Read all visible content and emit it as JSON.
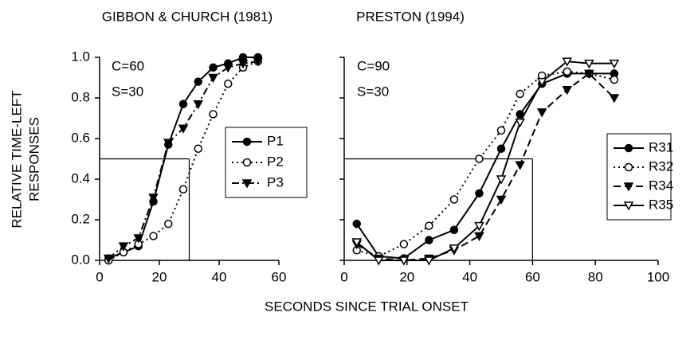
{
  "ylabel": [
    "RELATIVE TIME-LEFT",
    "RESPONSES"
  ],
  "xlabel": "SECONDS SINCE TRIAL ONSET",
  "chart_data": [
    {
      "type": "line",
      "title": "GIBBON & CHURCH (1981)",
      "annotations": [
        "C=60",
        "S=30"
      ],
      "xlim": [
        0,
        60
      ],
      "xticks": [
        0,
        20,
        40,
        60
      ],
      "ylim": [
        0,
        1
      ],
      "yticks": [
        {
          "value": 0,
          "label": "0.0"
        },
        {
          "value": 0.2,
          "label": "0.2"
        },
        {
          "value": 0.4,
          "label": "0.4"
        },
        {
          "value": 0.6,
          "label": "0.6"
        },
        {
          "value": 0.8,
          "label": "0.8"
        },
        {
          "value": 1,
          "label": "1.0"
        }
      ],
      "reference": {
        "x": 30,
        "y": 0.5
      },
      "x": [
        3,
        8,
        13,
        18,
        23,
        28,
        33,
        38,
        43,
        48,
        53
      ],
      "series": [
        {
          "name": "P1",
          "color": "#000000",
          "marker": "filled-circle",
          "dash": "solid",
          "values": [
            0.01,
            0.04,
            0.07,
            0.29,
            0.57,
            0.77,
            0.88,
            0.95,
            0.97,
            1.0,
            1.0
          ]
        },
        {
          "name": "P2",
          "color": "#000000",
          "marker": "open-circle",
          "dash": "dotted",
          "values": [
            0.0,
            0.04,
            0.08,
            0.12,
            0.18,
            0.35,
            0.55,
            0.72,
            0.87,
            0.95,
            0.98
          ]
        },
        {
          "name": "P3",
          "color": "#000000",
          "marker": "filled-triangle",
          "dash": "dashdot",
          "values": [
            0.01,
            0.07,
            0.11,
            0.31,
            0.58,
            0.65,
            0.77,
            0.9,
            0.95,
            0.97,
            0.98
          ]
        }
      ]
    },
    {
      "type": "line",
      "title": "PRESTON (1994)",
      "annotations": [
        "C=90",
        "S=30"
      ],
      "xlim": [
        0,
        100
      ],
      "xticks": [
        0,
        20,
        40,
        60,
        80,
        100
      ],
      "ylim": [
        0,
        1
      ],
      "yticks": [
        {
          "value": 0,
          "label": "0.0"
        },
        {
          "value": 0.2,
          "label": "0.2"
        },
        {
          "value": 0.4,
          "label": "0.4"
        },
        {
          "value": 0.6,
          "label": "0.6"
        },
        {
          "value": 0.8,
          "label": "0.8"
        },
        {
          "value": 1,
          "label": "1.0"
        }
      ],
      "reference": {
        "x": 60,
        "y": 0.5
      },
      "x": [
        4,
        11,
        19,
        27,
        35,
        43,
        50,
        56,
        63,
        71,
        78,
        86
      ],
      "series": [
        {
          "name": "R31",
          "color": "#000000",
          "marker": "filled-circle",
          "dash": "solid",
          "values": [
            0.18,
            0.02,
            0.01,
            0.1,
            0.15,
            0.33,
            0.55,
            0.72,
            0.87,
            0.92,
            0.92,
            0.92
          ]
        },
        {
          "name": "R32",
          "color": "#000000",
          "marker": "open-circle",
          "dash": "dotted",
          "values": [
            0.05,
            0.02,
            0.08,
            0.17,
            0.3,
            0.5,
            0.64,
            0.82,
            0.91,
            0.93,
            0.92,
            0.89
          ]
        },
        {
          "name": "R34",
          "color": "#000000",
          "marker": "filled-triangle",
          "dash": "dashed",
          "values": [
            0.08,
            0.01,
            0.0,
            0.01,
            0.05,
            0.12,
            0.3,
            0.47,
            0.73,
            0.84,
            0.92,
            0.8
          ]
        },
        {
          "name": "R35",
          "color": "#000000",
          "marker": "open-triangle",
          "dash": "solid",
          "values": [
            0.09,
            0.0,
            0.0,
            0.0,
            0.06,
            0.17,
            0.4,
            0.68,
            0.88,
            0.98,
            0.97,
            0.97
          ]
        }
      ]
    }
  ]
}
